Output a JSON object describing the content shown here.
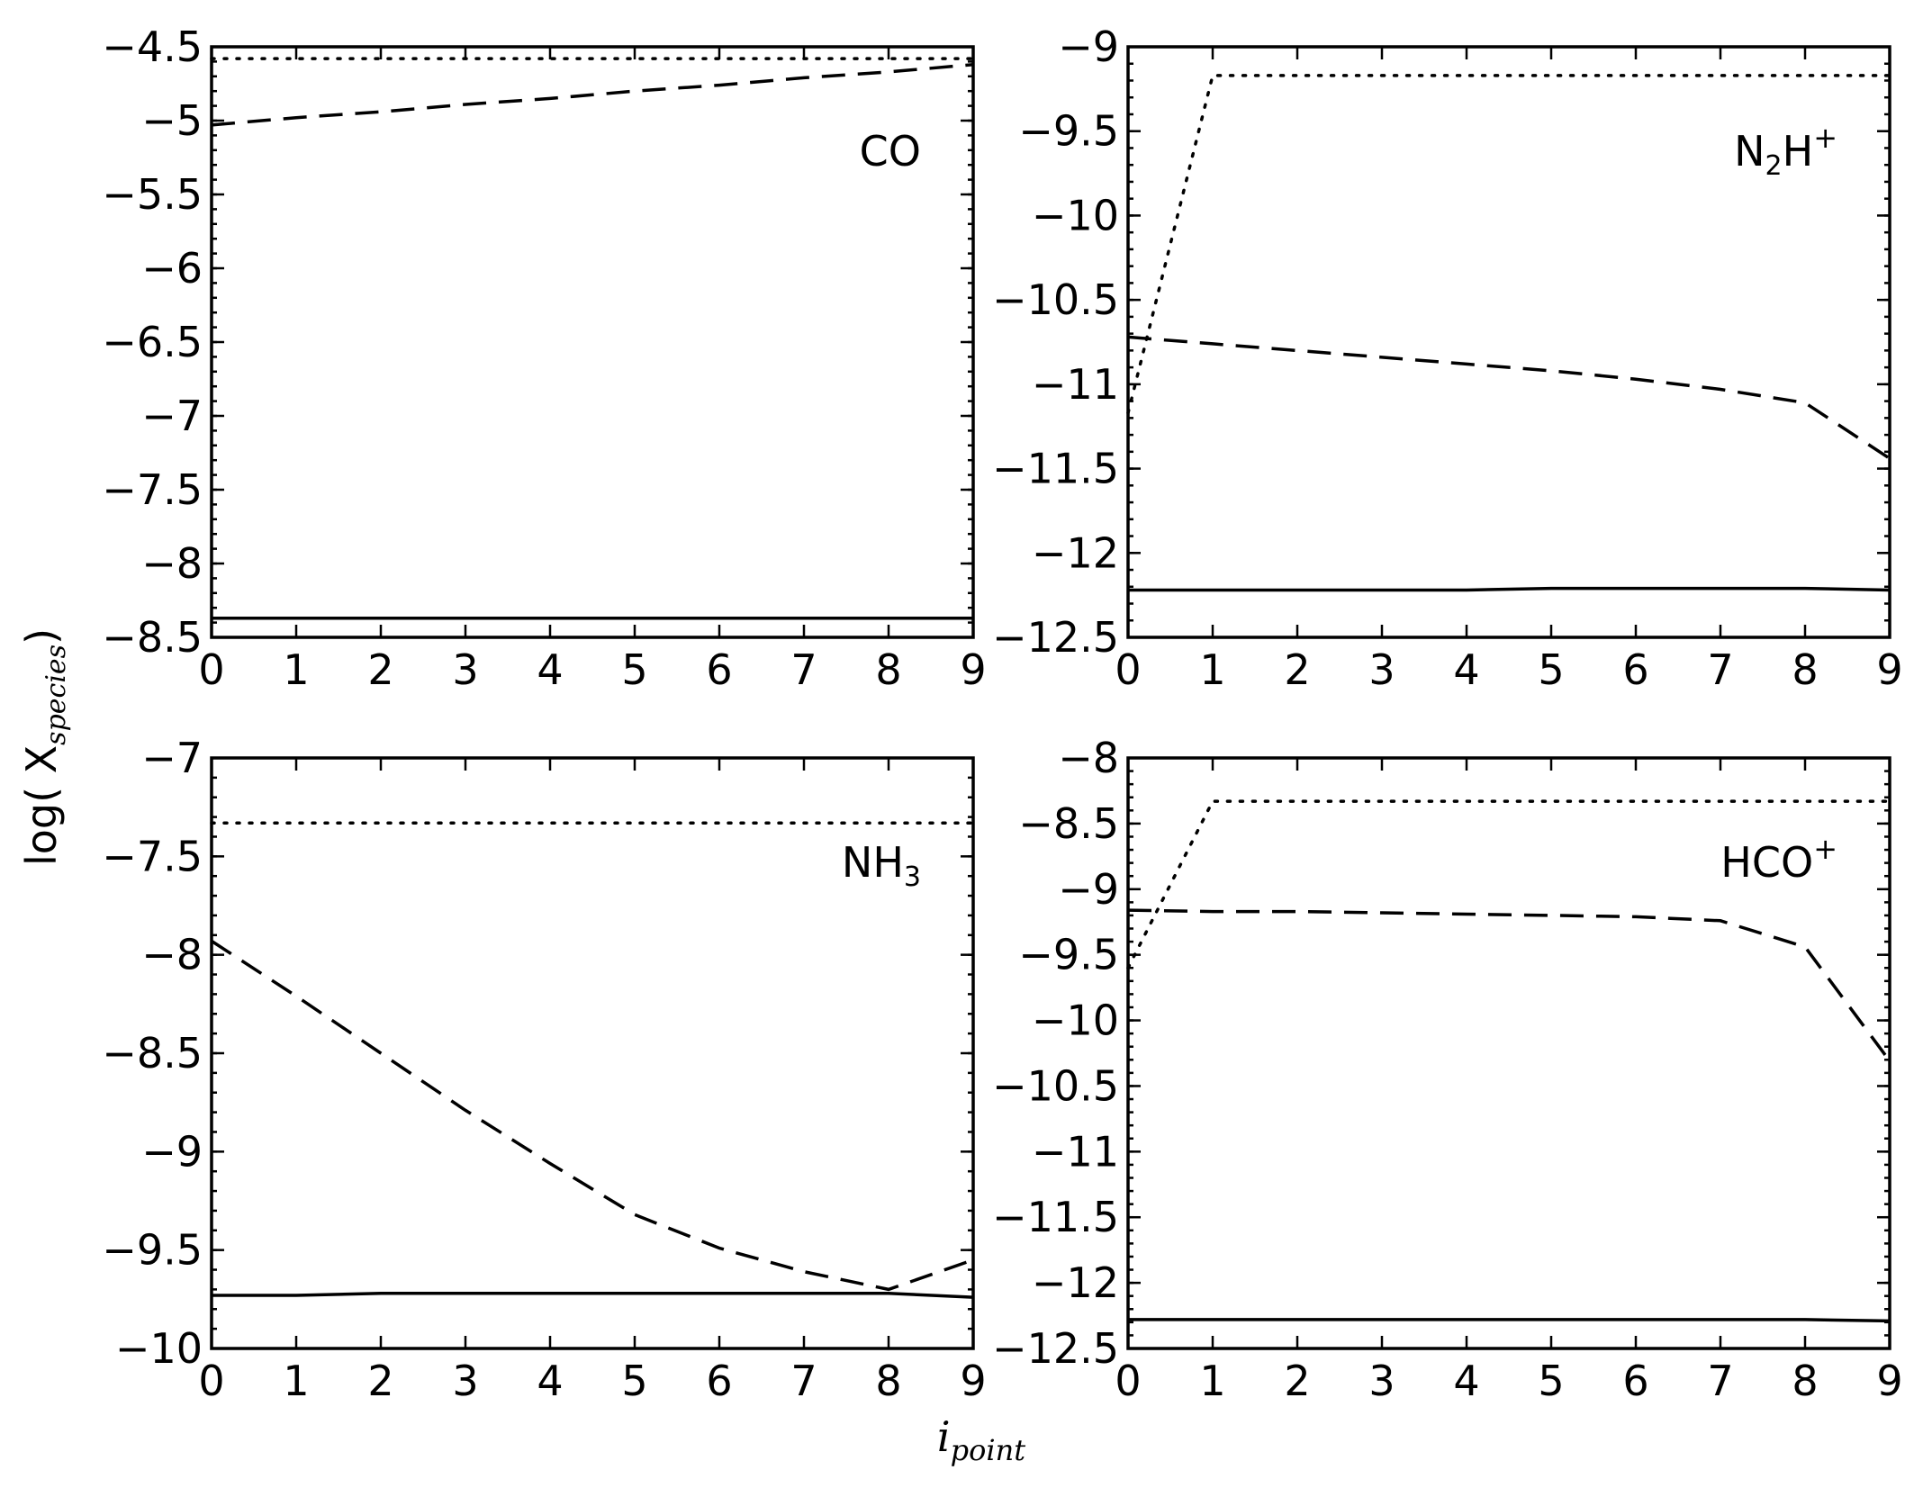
{
  "figure": {
    "ylabel": {
      "main": "log( X",
      "sub": "species",
      "close": ")"
    },
    "xlabel": {
      "main": "i",
      "sub": "point"
    }
  },
  "chart_data": [
    {
      "type": "line",
      "panel_label": {
        "main": "CO",
        "sub": "",
        "sup": ""
      },
      "label_position": "upper-right",
      "xlim": [
        0,
        9
      ],
      "ylim": [
        -8.5,
        -4.5
      ],
      "xticks": [
        0,
        1,
        2,
        3,
        4,
        5,
        6,
        7,
        8,
        9
      ],
      "yticks": [
        -8.5,
        -8.0,
        -7.5,
        -7.0,
        -6.5,
        -6.0,
        -5.5,
        -5.0,
        -4.5
      ],
      "grid": false,
      "series": [
        {
          "style": "solid",
          "x": [
            0,
            1,
            2,
            3,
            4,
            5,
            6,
            7,
            8,
            9
          ],
          "y": [
            -8.37,
            -8.37,
            -8.37,
            -8.37,
            -8.37,
            -8.37,
            -8.37,
            -8.37,
            -8.37,
            -8.37
          ]
        },
        {
          "style": "dashed",
          "x": [
            0,
            1,
            2,
            3,
            4,
            5,
            6,
            7,
            8,
            9
          ],
          "y": [
            -5.03,
            -4.98,
            -4.94,
            -4.89,
            -4.85,
            -4.8,
            -4.76,
            -4.71,
            -4.67,
            -4.62
          ]
        },
        {
          "style": "dotted",
          "x": [
            0,
            1,
            2,
            3,
            4,
            5,
            6,
            7,
            8,
            9
          ],
          "y": [
            -4.58,
            -4.58,
            -4.58,
            -4.58,
            -4.58,
            -4.58,
            -4.58,
            -4.58,
            -4.58,
            -4.58
          ]
        }
      ]
    },
    {
      "type": "line",
      "panel_label": {
        "main": "N",
        "sub": "2",
        "sup": "",
        "after": "H",
        "after_sup": "+"
      },
      "label_position": "upper-right",
      "xlim": [
        0,
        9
      ],
      "ylim": [
        -12.5,
        -9.0
      ],
      "xticks": [
        0,
        1,
        2,
        3,
        4,
        5,
        6,
        7,
        8,
        9
      ],
      "yticks": [
        -12.5,
        -12.0,
        -11.5,
        -11.0,
        -10.5,
        -10.0,
        -9.5,
        -9.0
      ],
      "grid": false,
      "series": [
        {
          "style": "solid",
          "x": [
            0,
            1,
            2,
            3,
            4,
            5,
            6,
            7,
            8,
            9
          ],
          "y": [
            -12.22,
            -12.22,
            -12.22,
            -12.22,
            -12.22,
            -12.21,
            -12.21,
            -12.21,
            -12.21,
            -12.22
          ]
        },
        {
          "style": "dashed",
          "x": [
            0,
            1,
            2,
            3,
            4,
            5,
            6,
            7,
            8,
            9
          ],
          "y": [
            -10.72,
            -10.76,
            -10.8,
            -10.84,
            -10.88,
            -10.92,
            -10.97,
            -11.03,
            -11.11,
            -11.44
          ]
        },
        {
          "style": "dotted",
          "x": [
            0,
            1,
            2,
            3,
            4,
            5,
            6,
            7,
            8,
            9
          ],
          "y": [
            -11.17,
            -9.17,
            -9.17,
            -9.17,
            -9.17,
            -9.17,
            -9.17,
            -9.17,
            -9.17,
            -9.17
          ]
        }
      ]
    },
    {
      "type": "line",
      "panel_label": {
        "main": "NH",
        "sub": "3",
        "sup": ""
      },
      "label_position": "upper-right",
      "xlim": [
        0,
        9
      ],
      "ylim": [
        -10.0,
        -7.0
      ],
      "xticks": [
        0,
        1,
        2,
        3,
        4,
        5,
        6,
        7,
        8,
        9
      ],
      "yticks": [
        -10.0,
        -9.5,
        -9.0,
        -8.5,
        -8.0,
        -7.5,
        -7.0
      ],
      "grid": false,
      "series": [
        {
          "style": "solid",
          "x": [
            0,
            1,
            2,
            3,
            4,
            5,
            6,
            7,
            8,
            9
          ],
          "y": [
            -9.73,
            -9.73,
            -9.72,
            -9.72,
            -9.72,
            -9.72,
            -9.72,
            -9.72,
            -9.72,
            -9.74
          ]
        },
        {
          "style": "dashed",
          "x": [
            0,
            1,
            2,
            3,
            4,
            5,
            6,
            7,
            8,
            9
          ],
          "y": [
            -7.93,
            -8.21,
            -8.5,
            -8.79,
            -9.06,
            -9.32,
            -9.49,
            -9.61,
            -9.7,
            -9.55
          ]
        },
        {
          "style": "dotted",
          "x": [
            0,
            1,
            2,
            3,
            4,
            5,
            6,
            7,
            8,
            9
          ],
          "y": [
            -7.33,
            -7.33,
            -7.33,
            -7.33,
            -7.33,
            -7.33,
            -7.33,
            -7.33,
            -7.33,
            -7.33
          ]
        }
      ]
    },
    {
      "type": "line",
      "panel_label": {
        "main": "HCO",
        "sub": "",
        "sup": "+"
      },
      "label_position": "upper-right",
      "xlim": [
        0,
        9
      ],
      "ylim": [
        -12.5,
        -8.0
      ],
      "xticks": [
        0,
        1,
        2,
        3,
        4,
        5,
        6,
        7,
        8,
        9
      ],
      "yticks": [
        -12.5,
        -12.0,
        -11.5,
        -11.0,
        -10.5,
        -10.0,
        -9.5,
        -9.0,
        -8.5,
        -8.0
      ],
      "grid": false,
      "series": [
        {
          "style": "solid",
          "x": [
            0,
            1,
            2,
            3,
            4,
            5,
            6,
            7,
            8,
            9
          ],
          "y": [
            -12.28,
            -12.28,
            -12.28,
            -12.28,
            -12.28,
            -12.28,
            -12.28,
            -12.28,
            -12.28,
            -12.29
          ]
        },
        {
          "style": "dashed",
          "x": [
            0,
            1,
            2,
            3,
            4,
            5,
            6,
            7,
            8,
            9
          ],
          "y": [
            -9.16,
            -9.17,
            -9.17,
            -9.18,
            -9.19,
            -9.2,
            -9.21,
            -9.24,
            -9.44,
            -10.31
          ]
        },
        {
          "style": "dotted",
          "x": [
            0,
            1,
            2,
            3,
            4,
            5,
            6,
            7,
            8,
            9
          ],
          "y": [
            -9.6,
            -8.33,
            -8.33,
            -8.33,
            -8.33,
            -8.33,
            -8.33,
            -8.33,
            -8.33,
            -8.33
          ]
        }
      ]
    }
  ]
}
